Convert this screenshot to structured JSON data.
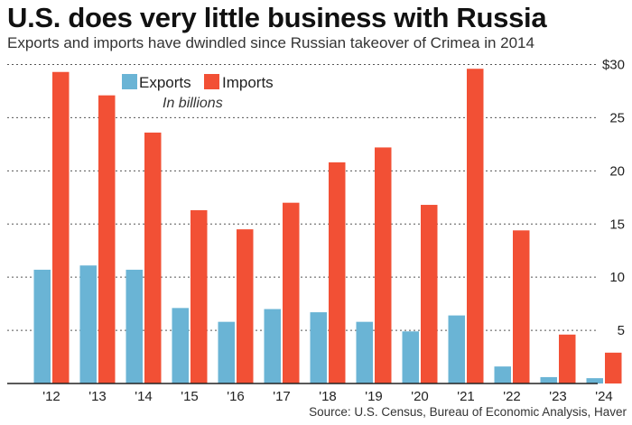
{
  "chart_data": {
    "type": "bar",
    "title": "U.S. does very little business with Russia",
    "subtitle": "Exports and imports have dwindled since Russian takeover of Crimea in 2014",
    "note": "In billions",
    "source": "Source: U.S. Census, Bureau of Economic Analysis, Haver",
    "categories": [
      "'12",
      "'13",
      "'14",
      "'15",
      "'16",
      "'17",
      "'18",
      "'19",
      "'20",
      "'21",
      "'22",
      "'23",
      "'24"
    ],
    "series": [
      {
        "name": "Exports",
        "color": "#6ab4d5",
        "values": [
          10.7,
          11.1,
          10.7,
          7.1,
          5.8,
          7.0,
          6.7,
          5.8,
          4.9,
          6.4,
          1.6,
          0.6,
          0.5
        ]
      },
      {
        "name": "Imports",
        "color": "#f25035",
        "values": [
          29.3,
          27.1,
          23.6,
          16.3,
          14.5,
          17.0,
          20.8,
          22.2,
          16.8,
          29.6,
          14.4,
          4.6,
          2.9
        ]
      }
    ],
    "y_ticks": [
      "",
      "5",
      "10",
      "15",
      "20",
      "25",
      "$30"
    ],
    "ylim": [
      0,
      30
    ],
    "grid": true,
    "legend_position": "top-left"
  }
}
